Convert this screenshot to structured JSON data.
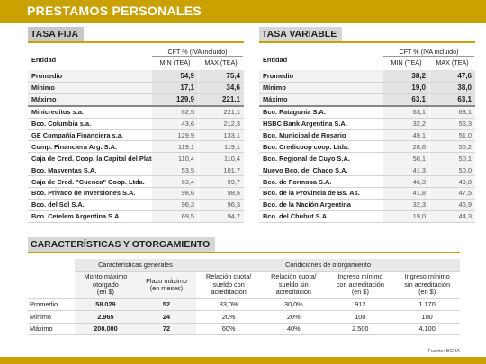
{
  "banner": "PRESTAMOS PERSONALES",
  "fija": {
    "title": "TASA FIJA",
    "entidad": "Entidad",
    "cft": "CFT % (IVA incluido)",
    "min": "MIN (TEA)",
    "max": "MAX (TEA)",
    "summary": [
      [
        "Promedio",
        "54,9",
        "75,4"
      ],
      [
        "Mínimo",
        "17,1",
        "34,6"
      ],
      [
        "Máximo",
        "129,9",
        "221,1"
      ]
    ],
    "rows": [
      [
        "Minicreditos s.a.",
        "62,5",
        "221,1"
      ],
      [
        "Bco. Columbia s.a.",
        "43,6",
        "212,3"
      ],
      [
        "GE Compañía Financiera s.a.",
        "129,9",
        "133,1"
      ],
      [
        "Comp. Financiera Arg. S.A.",
        "119,1",
        "119,1"
      ],
      [
        "Caja de Cred. Coop. la Capital del Plata Ltda.",
        "110,4",
        "110,4"
      ],
      [
        "Bco. Masventas S.A.",
        "53,5",
        "101,7"
      ],
      [
        "Caja de Cred. \"Cuenca\" Coop. Ltda.",
        "63,4",
        "99,7"
      ],
      [
        "Bco. Privado de Inversiones S.A.",
        "98,6",
        "98,6"
      ],
      [
        "Bco. del Sol S.A.",
        "96,3",
        "96,3"
      ],
      [
        "Bco. Cetelem Argentina S.A.",
        "69,5",
        "94,7"
      ]
    ]
  },
  "variable": {
    "title": "TASA VARIABLE",
    "entidad": "Entidad",
    "cft": "CFT % (IVA incluido)",
    "min": "MIN (TEA)",
    "max": "MAX (TEA)",
    "summary": [
      [
        "Promedio",
        "38,2",
        "47,6"
      ],
      [
        "Mínimo",
        "19,0",
        "38,0"
      ],
      [
        "Máximo",
        "63,1",
        "63,1"
      ]
    ],
    "rows": [
      [
        "Bco. Patagonia S.A.",
        "63,1",
        "63,1"
      ],
      [
        "HSBC Bank Argentina S.A.",
        "32,2",
        "56,3"
      ],
      [
        "Bco. Municipal de Rosario",
        "49,1",
        "51,0"
      ],
      [
        "Bco. Credicoop coop. Ltda.",
        "28,6",
        "50,2"
      ],
      [
        "Bco. Regional de Cuyo S.A.",
        "50,1",
        "50,1"
      ],
      [
        "Nuevo Bco. del Chaco S.A.",
        "41,3",
        "50,0"
      ],
      [
        "Bco. de Formosa S.A.",
        "46,3",
        "49,8"
      ],
      [
        "Bco. de la Provincia de Bs. As.",
        "41,8",
        "47,5"
      ],
      [
        "Bco. de la Nación Argentina",
        "32,3",
        "46,9"
      ],
      [
        "Bco. del Chubut S.A.",
        "19,0",
        "44,3"
      ]
    ]
  },
  "carac": {
    "title": "CARACTERÍSTICAS Y OTORGAMIENTO",
    "group1": "Características generales",
    "group2": "Condiciones de otorgamiento",
    "cols": [
      [
        "Monto máximo",
        "otorgado",
        "(en $)"
      ],
      [
        "Plazo máximo",
        "(en meses)",
        ""
      ],
      [
        "Relación cuota/",
        "sueldo con",
        "acreditación"
      ],
      [
        "Relación cuota/",
        "sueldo sin",
        "acreditación"
      ],
      [
        "Ingreso mínimo",
        "con acreditación",
        "(en $)"
      ],
      [
        "Ingreso mínimo",
        "sin acreditación",
        "(en $)"
      ]
    ],
    "rows": [
      [
        "Promedio",
        "58.029",
        "52",
        "33,0%",
        "30,0%",
        "912",
        "1.170"
      ],
      [
        "Mínimo",
        "2.965",
        "24",
        "20%",
        "20%",
        "100",
        "100"
      ],
      [
        "Máximo",
        "200.000",
        "72",
        "60%",
        "40%",
        "2.500",
        "4.100"
      ]
    ]
  },
  "fuente": "Fuente: BCRA"
}
